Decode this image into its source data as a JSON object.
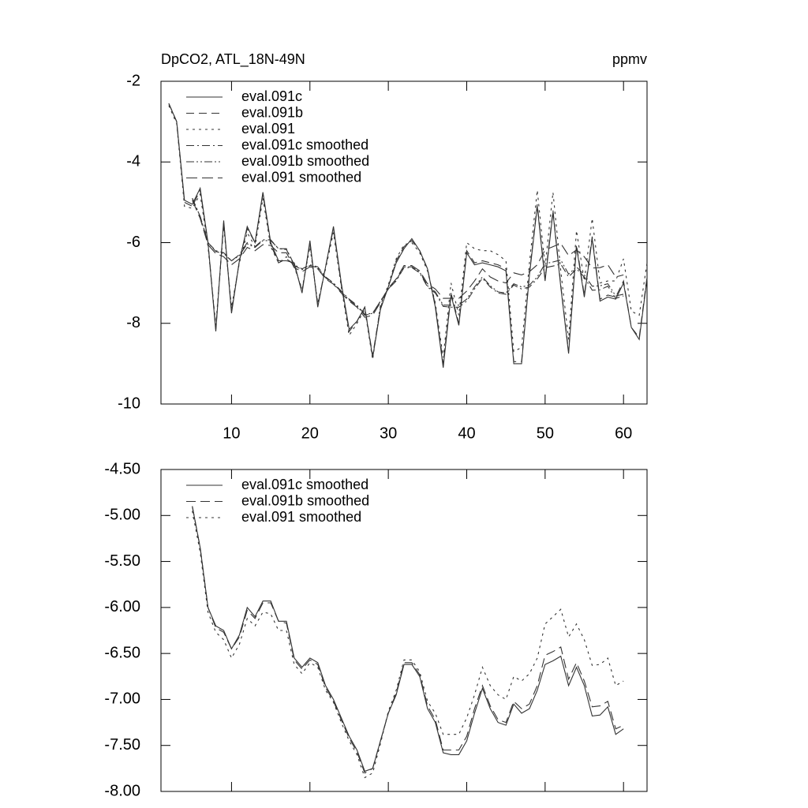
{
  "chart_data": [
    {
      "type": "line",
      "title": "DpCO2, ATL_18N-49N",
      "units": "ppmv",
      "legend": "upper left",
      "x": [
        2,
        3,
        4,
        5,
        6,
        7,
        8,
        9,
        10,
        11,
        12,
        13,
        14,
        15,
        16,
        17,
        18,
        19,
        20,
        21,
        22,
        23,
        24,
        25,
        26,
        27,
        28,
        29,
        30,
        31,
        32,
        33,
        34,
        35,
        36,
        37,
        38,
        39,
        40,
        41,
        42,
        43,
        44,
        45,
        46,
        47,
        48,
        49,
        50,
        51,
        52,
        53,
        54,
        55,
        56,
        57,
        58,
        59,
        60,
        61,
        62,
        63
      ],
      "xlim": [
        1,
        63
      ],
      "xticks": [
        10,
        20,
        30,
        40,
        50,
        60
      ],
      "ylim": [
        -10,
        -2
      ],
      "yticks": [
        -2,
        -4,
        -6,
        -8,
        -10
      ],
      "series": [
        {
          "name": "eval.091c",
          "color": "#333333",
          "values": [
            -2.55,
            -3.0,
            -4.95,
            -5.05,
            -4.65,
            -6.0,
            -8.2,
            -5.45,
            -7.75,
            -6.45,
            -5.6,
            -6.0,
            -4.75,
            -6.0,
            -6.45,
            -6.45,
            -6.5,
            -7.25,
            -5.95,
            -7.6,
            -6.6,
            -5.6,
            -7.0,
            -8.15,
            -7.95,
            -7.6,
            -8.85,
            -7.65,
            -7.1,
            -6.5,
            -6.15,
            -5.9,
            -6.2,
            -6.65,
            -7.6,
            -9.1,
            -7.3,
            -8.05,
            -6.25,
            -6.55,
            -6.5,
            -6.55,
            -6.6,
            -6.7,
            -9.0,
            -9.0,
            -6.8,
            -5.1,
            -6.95,
            -5.25,
            -7.1,
            -8.75,
            -6.1,
            -7.35,
            -5.9,
            -7.45,
            -7.35,
            -7.4,
            -7.0,
            -8.1,
            -8.4,
            -6.9
          ]
        },
        {
          "name": "eval.091b",
          "color": "#333333",
          "dash": "10,6",
          "values": [
            -2.55,
            -3.0,
            -5.0,
            -5.1,
            -4.7,
            -6.0,
            -8.15,
            -5.5,
            -7.7,
            -6.45,
            -5.65,
            -6.0,
            -4.8,
            -6.05,
            -6.5,
            -6.4,
            -6.55,
            -7.2,
            -6.0,
            -7.55,
            -6.6,
            -5.65,
            -7.05,
            -8.2,
            -7.95,
            -7.6,
            -8.8,
            -7.6,
            -7.1,
            -6.45,
            -6.1,
            -5.95,
            -6.2,
            -6.65,
            -7.55,
            -9.0,
            -7.25,
            -8.0,
            -6.2,
            -6.5,
            -6.45,
            -6.5,
            -6.55,
            -6.65,
            -8.95,
            -8.95,
            -6.75,
            -5.05,
            -6.9,
            -5.2,
            -7.05,
            -8.7,
            -6.05,
            -7.3,
            -5.85,
            -7.4,
            -7.3,
            -7.35,
            -6.95,
            -8.1,
            -8.35,
            -6.85
          ]
        },
        {
          "name": "eval.091",
          "color": "#333333",
          "dash": "3,5",
          "values": [
            -2.6,
            -3.05,
            -5.1,
            -5.15,
            -4.8,
            -6.1,
            -8.05,
            -5.6,
            -7.6,
            -6.5,
            -5.75,
            -6.1,
            -4.9,
            -6.1,
            -6.5,
            -6.35,
            -6.6,
            -7.15,
            -6.1,
            -7.5,
            -6.65,
            -5.75,
            -7.1,
            -8.3,
            -8.0,
            -7.65,
            -8.9,
            -7.55,
            -7.05,
            -6.4,
            -6.05,
            -6.0,
            -6.25,
            -6.7,
            -7.5,
            -8.85,
            -7.0,
            -7.8,
            -6.0,
            -6.15,
            -6.2,
            -6.2,
            -6.3,
            -6.45,
            -8.7,
            -8.6,
            -6.5,
            -4.7,
            -6.6,
            -4.75,
            -6.7,
            -8.4,
            -5.7,
            -6.95,
            -5.4,
            -7.0,
            -6.95,
            -6.95,
            -6.4,
            -7.7,
            -7.8,
            -6.5
          ]
        },
        {
          "name": "eval.091c smoothed",
          "color": "#333333",
          "dash": "10,4,2,4",
          "x": [
            5,
            6,
            7,
            8,
            9,
            10,
            11,
            12,
            13,
            14,
            15,
            16,
            17,
            18,
            19,
            20,
            21,
            22,
            23,
            24,
            25,
            26,
            27,
            28,
            29,
            30,
            31,
            32,
            33,
            34,
            35,
            36,
            37,
            38,
            39,
            40,
            41,
            42,
            43,
            44,
            45,
            46,
            47,
            48,
            49,
            50,
            51,
            52,
            53,
            54,
            55,
            56,
            57,
            58,
            59,
            60
          ],
          "values": [
            -4.9,
            -5.35,
            -6.0,
            -6.2,
            -6.25,
            -6.45,
            -6.3,
            -6.0,
            -6.1,
            -5.93,
            -5.93,
            -6.15,
            -6.15,
            -6.55,
            -6.65,
            -6.55,
            -6.6,
            -6.85,
            -7.0,
            -7.2,
            -7.4,
            -7.55,
            -7.78,
            -7.75,
            -7.45,
            -7.15,
            -6.95,
            -6.62,
            -6.62,
            -6.75,
            -7.1,
            -7.25,
            -7.58,
            -7.6,
            -7.6,
            -7.45,
            -7.15,
            -6.88,
            -7.1,
            -7.25,
            -7.28,
            -7.05,
            -7.15,
            -7.1,
            -6.9,
            -6.62,
            -6.58,
            -6.53,
            -6.85,
            -6.65,
            -6.85,
            -7.18,
            -7.17,
            -7.08,
            -7.38,
            -7.32
          ]
        },
        {
          "name": "eval.091b smoothed",
          "color": "#333333",
          "dash": "10,3,2,3,2,3",
          "x": [
            5,
            6,
            7,
            8,
            9,
            10,
            11,
            12,
            13,
            14,
            15,
            16,
            17,
            18,
            19,
            20,
            21,
            22,
            23,
            24,
            25,
            26,
            27,
            28,
            29,
            30,
            31,
            32,
            33,
            34,
            35,
            36,
            37,
            38,
            39,
            40,
            41,
            42,
            43,
            44,
            45,
            46,
            47,
            48,
            49,
            50,
            51,
            52,
            53,
            54,
            55,
            56,
            57,
            58,
            59,
            60
          ],
          "values": [
            -4.9,
            -5.35,
            -6.0,
            -6.22,
            -6.27,
            -6.45,
            -6.32,
            -6.03,
            -6.12,
            -5.95,
            -5.95,
            -6.15,
            -6.17,
            -6.57,
            -6.67,
            -6.57,
            -6.62,
            -6.87,
            -7.02,
            -7.22,
            -7.42,
            -7.57,
            -7.8,
            -7.75,
            -7.45,
            -7.15,
            -6.93,
            -6.6,
            -6.6,
            -6.73,
            -7.07,
            -7.22,
            -7.55,
            -7.55,
            -7.55,
            -7.4,
            -7.1,
            -6.85,
            -7.07,
            -7.22,
            -7.25,
            -7.02,
            -7.1,
            -7.05,
            -6.85,
            -6.52,
            -6.48,
            -6.43,
            -6.78,
            -6.6,
            -6.8,
            -7.08,
            -7.07,
            -7.02,
            -7.32,
            -7.28
          ]
        },
        {
          "name": "eval.091 smoothed",
          "color": "#333333",
          "dash": "14,6",
          "x": [
            5,
            6,
            7,
            8,
            9,
            10,
            11,
            12,
            13,
            14,
            15,
            16,
            17,
            18,
            19,
            20,
            21,
            22,
            23,
            24,
            25,
            26,
            27,
            28,
            29,
            30,
            31,
            32,
            33,
            34,
            35,
            36,
            37,
            38,
            39,
            40,
            41,
            42,
            43,
            44,
            45,
            46,
            47,
            48,
            49,
            50,
            51,
            52,
            53,
            54,
            55,
            56,
            57,
            58,
            59,
            60
          ],
          "values": [
            -4.95,
            -5.4,
            -6.05,
            -6.27,
            -6.35,
            -6.55,
            -6.4,
            -6.12,
            -6.2,
            -6.05,
            -6.07,
            -6.25,
            -6.25,
            -6.62,
            -6.72,
            -6.6,
            -6.65,
            -6.9,
            -7.03,
            -7.25,
            -7.45,
            -7.6,
            -7.85,
            -7.8,
            -7.48,
            -7.13,
            -6.9,
            -6.57,
            -6.57,
            -6.7,
            -7.02,
            -7.15,
            -7.38,
            -7.38,
            -7.38,
            -7.2,
            -6.95,
            -6.65,
            -6.85,
            -6.95,
            -7.0,
            -6.75,
            -6.8,
            -6.72,
            -6.55,
            -6.18,
            -6.1,
            -6.02,
            -6.32,
            -6.18,
            -6.35,
            -6.63,
            -6.62,
            -6.55,
            -6.85,
            -6.8
          ]
        }
      ]
    },
    {
      "type": "line",
      "legend": "upper left",
      "x": [
        5,
        6,
        7,
        8,
        9,
        10,
        11,
        12,
        13,
        14,
        15,
        16,
        17,
        18,
        19,
        20,
        21,
        22,
        23,
        24,
        25,
        26,
        27,
        28,
        29,
        30,
        31,
        32,
        33,
        34,
        35,
        36,
        37,
        38,
        39,
        40,
        41,
        42,
        43,
        44,
        45,
        46,
        47,
        48,
        49,
        50,
        51,
        52,
        53,
        54,
        55,
        56,
        57,
        58,
        59,
        60
      ],
      "xlim": [
        1,
        63
      ],
      "ylim": [
        -8,
        -4.5
      ],
      "yticks": [
        {
          "value": -4.5,
          "label": "-4.50"
        },
        {
          "value": -5,
          "label": "-5.00"
        },
        {
          "value": -5.5,
          "label": "-5.50"
        },
        {
          "value": -6,
          "label": "-6.00"
        },
        {
          "value": -6.5,
          "label": "-6.50"
        },
        {
          "value": -7,
          "label": "-7.00"
        },
        {
          "value": -7.5,
          "label": "-7.50"
        },
        {
          "value": -8,
          "label": "-8.00"
        }
      ],
      "series": [
        {
          "name": "eval.091c smoothed",
          "color": "#333333",
          "values": [
            -4.9,
            -5.35,
            -6.0,
            -6.2,
            -6.25,
            -6.45,
            -6.3,
            -6.0,
            -6.1,
            -5.93,
            -5.93,
            -6.15,
            -6.15,
            -6.55,
            -6.65,
            -6.55,
            -6.6,
            -6.85,
            -7.0,
            -7.2,
            -7.4,
            -7.55,
            -7.78,
            -7.75,
            -7.45,
            -7.15,
            -6.95,
            -6.62,
            -6.62,
            -6.75,
            -7.1,
            -7.25,
            -7.58,
            -7.6,
            -7.6,
            -7.45,
            -7.15,
            -6.88,
            -7.1,
            -7.25,
            -7.28,
            -7.05,
            -7.15,
            -7.1,
            -6.9,
            -6.62,
            -6.58,
            -6.53,
            -6.85,
            -6.65,
            -6.85,
            -7.18,
            -7.17,
            -7.08,
            -7.38,
            -7.32
          ]
        },
        {
          "name": "eval.091b smoothed",
          "color": "#333333",
          "dash": "12,6",
          "values": [
            -4.9,
            -5.35,
            -6.0,
            -6.22,
            -6.27,
            -6.45,
            -6.32,
            -6.03,
            -6.12,
            -5.95,
            -5.95,
            -6.15,
            -6.17,
            -6.57,
            -6.67,
            -6.57,
            -6.62,
            -6.87,
            -7.02,
            -7.22,
            -7.42,
            -7.57,
            -7.8,
            -7.75,
            -7.45,
            -7.15,
            -6.93,
            -6.6,
            -6.6,
            -6.73,
            -7.07,
            -7.22,
            -7.55,
            -7.55,
            -7.55,
            -7.4,
            -7.1,
            -6.85,
            -7.07,
            -7.22,
            -7.25,
            -7.02,
            -7.1,
            -7.05,
            -6.85,
            -6.52,
            -6.48,
            -6.43,
            -6.78,
            -6.6,
            -6.8,
            -7.08,
            -7.07,
            -7.02,
            -7.32,
            -7.28
          ]
        },
        {
          "name": "eval.091 smoothed",
          "color": "#333333",
          "dash": "3,5",
          "values": [
            -4.95,
            -5.4,
            -6.05,
            -6.27,
            -6.35,
            -6.55,
            -6.4,
            -6.12,
            -6.2,
            -6.05,
            -6.07,
            -6.25,
            -6.25,
            -6.62,
            -6.72,
            -6.6,
            -6.65,
            -6.9,
            -7.03,
            -7.25,
            -7.45,
            -7.6,
            -7.85,
            -7.8,
            -7.48,
            -7.13,
            -6.9,
            -6.57,
            -6.57,
            -6.7,
            -7.02,
            -7.15,
            -7.38,
            -7.38,
            -7.38,
            -7.2,
            -6.95,
            -6.65,
            -6.85,
            -6.95,
            -7.0,
            -6.75,
            -6.8,
            -6.72,
            -6.55,
            -6.18,
            -6.1,
            -6.02,
            -6.32,
            -6.18,
            -6.35,
            -6.63,
            -6.62,
            -6.55,
            -6.85,
            -6.8
          ]
        }
      ]
    }
  ]
}
